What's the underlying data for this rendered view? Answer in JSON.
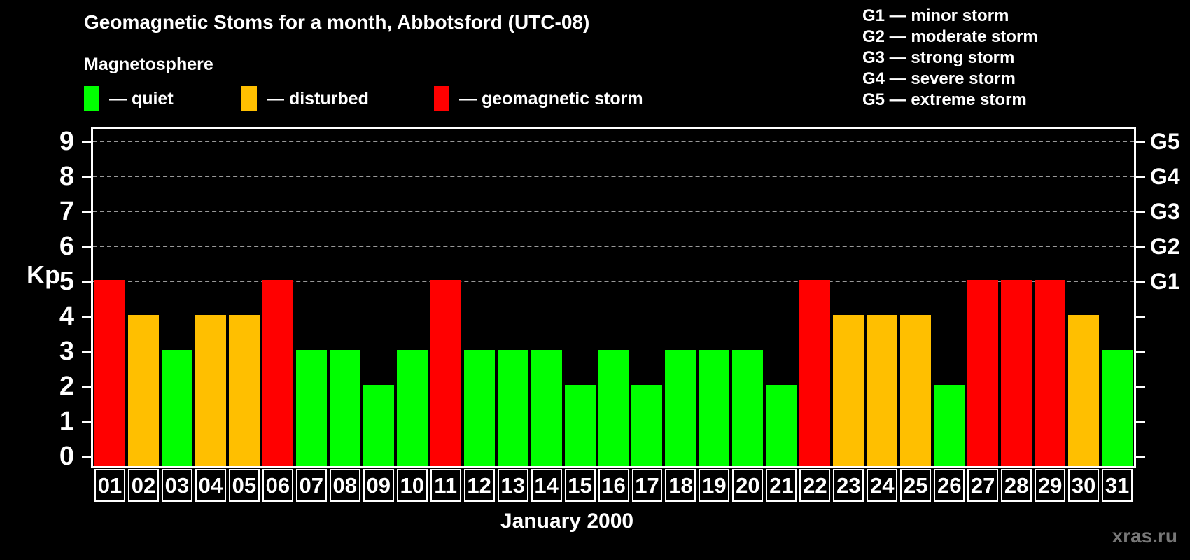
{
  "header": {
    "title": "Geomagnetic Stoms for a month, Abbotsford (UTC-08)",
    "legend_heading": "Magnetosphere"
  },
  "legend": {
    "items": [
      {
        "name": "quiet",
        "label": "— quiet",
        "color": "#00ff00"
      },
      {
        "name": "disturbed",
        "label": "— disturbed",
        "color": "#ffbf00"
      },
      {
        "name": "storm",
        "label": "— geomagnetic storm",
        "color": "#ff0000"
      }
    ]
  },
  "g_scale_legend": {
    "items": [
      "G1 — minor storm",
      "G2 — moderate storm",
      "G3 — strong storm",
      "G4 — severe storm",
      "G5 — extreme storm"
    ]
  },
  "watermark": "xras.ru",
  "chart_data": {
    "type": "bar",
    "title": "Geomagnetic Stoms for a month, Abbotsford (UTC-08)",
    "xlabel": "January 2000",
    "ylabel": "Kp",
    "ylim": [
      0,
      9
    ],
    "y_ticks_left": [
      0,
      1,
      2,
      3,
      4,
      5,
      6,
      7,
      8,
      9
    ],
    "y_ticks_right": [
      0,
      1,
      2,
      3,
      4,
      5,
      6,
      7,
      8,
      9
    ],
    "right_axis_labels": {
      "5": "G1",
      "6": "G2",
      "7": "G3",
      "8": "G4",
      "9": "G5"
    },
    "gridlines_at": [
      5,
      6,
      7,
      8,
      9
    ],
    "grid_style": "dashed",
    "legend_position": "top-left",
    "categories": [
      "01",
      "02",
      "03",
      "04",
      "05",
      "06",
      "07",
      "08",
      "09",
      "10",
      "11",
      "12",
      "13",
      "14",
      "15",
      "16",
      "17",
      "18",
      "19",
      "20",
      "21",
      "22",
      "23",
      "24",
      "25",
      "26",
      "27",
      "28",
      "29",
      "30",
      "31"
    ],
    "values": [
      5,
      4,
      3,
      4,
      4,
      5,
      3,
      3,
      2,
      3,
      5,
      3,
      3,
      3,
      2,
      3,
      2,
      3,
      3,
      3,
      2,
      5,
      4,
      4,
      4,
      2,
      5,
      5,
      5,
      4,
      3
    ],
    "statuses": [
      "storm",
      "disturbed",
      "quiet",
      "disturbed",
      "disturbed",
      "storm",
      "quiet",
      "quiet",
      "quiet",
      "quiet",
      "storm",
      "quiet",
      "quiet",
      "quiet",
      "quiet",
      "quiet",
      "quiet",
      "quiet",
      "quiet",
      "quiet",
      "quiet",
      "storm",
      "disturbed",
      "disturbed",
      "disturbed",
      "quiet",
      "storm",
      "storm",
      "storm",
      "disturbed",
      "quiet"
    ],
    "colors": {
      "quiet": "#00ff00",
      "disturbed": "#ffbf00",
      "storm": "#ff0000",
      "axis": "#ffffff",
      "grid": "#999999",
      "text": "#ffffff",
      "watermark": "#777777",
      "background": "#000000"
    }
  }
}
